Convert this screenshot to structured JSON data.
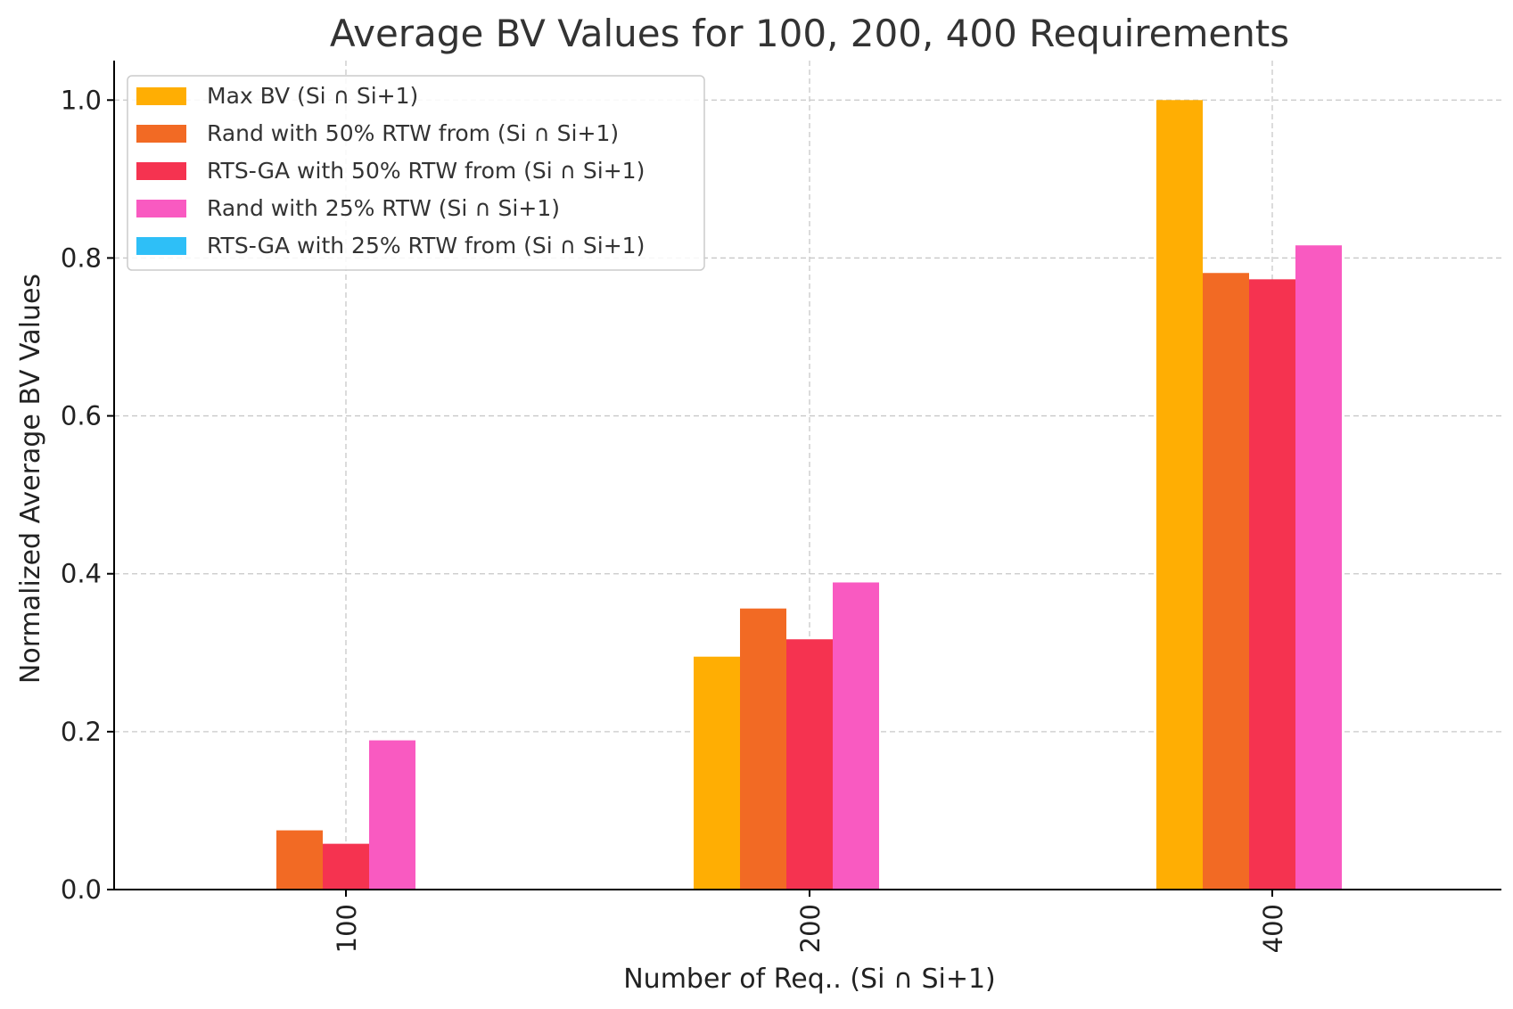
{
  "chart_data": {
    "type": "bar",
    "title": "Average BV Values for 100, 200, 400 Requirements",
    "xlabel": "Number of Req.. (Si ∩ Si+1)",
    "ylabel": "Normalized Average BV Values",
    "categories": [
      "100",
      "200",
      "400"
    ],
    "ylim": [
      0,
      1.05
    ],
    "yticks": [
      "0.0",
      "0.2",
      "0.4",
      "0.6",
      "0.8",
      "1.0"
    ],
    "ytick_values": [
      0.0,
      0.2,
      0.4,
      0.6,
      0.8,
      1.0
    ],
    "grid": true,
    "legend_position": "top-left",
    "series": [
      {
        "name": "Max BV (Si ∩ Si+1)",
        "color": "#FFAE03",
        "values": [
          0.0,
          0.295,
          1.0
        ]
      },
      {
        "name": "Rand with 50% RTW from (Si ∩ Si+1)",
        "color": "#F26A24",
        "values": [
          0.075,
          0.356,
          0.781
        ]
      },
      {
        "name": "RTS-GA with 50% RTW from (Si ∩ Si+1)",
        "color": "#F53350",
        "values": [
          0.058,
          0.317,
          0.773
        ]
      },
      {
        "name": "Rand with 25% RTW (Si ∩ Si+1)",
        "color": "#F95AC1",
        "values": [
          0.189,
          0.389,
          0.816
        ]
      },
      {
        "name": "RTS-GA with 25% RTW from (Si ∩ Si+1)",
        "color": "#2EBFF7",
        "values": [
          0.0,
          0.0,
          0.0
        ]
      }
    ]
  }
}
